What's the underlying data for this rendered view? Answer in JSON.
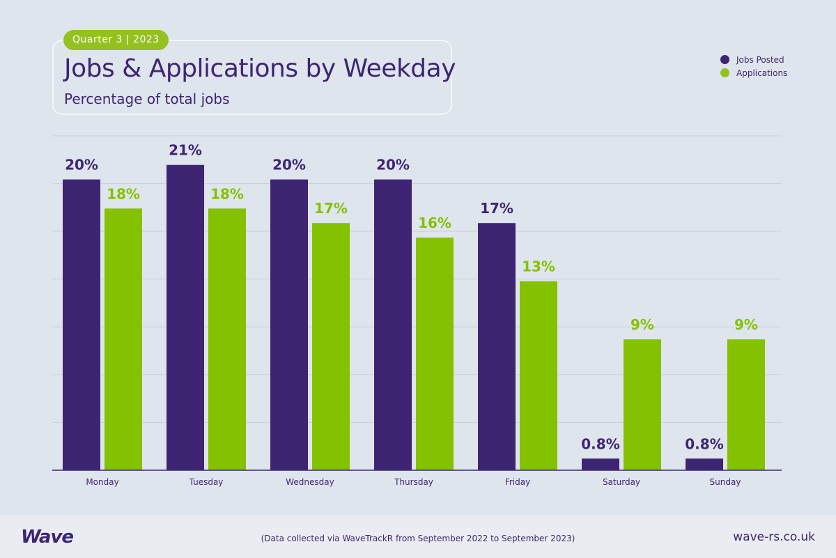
{
  "header": {
    "badge": "Quarter 3 | 2023",
    "title": "Jobs & Applications by Weekday",
    "subtitle": "Percentage of total jobs"
  },
  "legend": [
    {
      "label": "Jobs Posted",
      "color": "#3e2574"
    },
    {
      "label": "Applications",
      "color": "#94c11f"
    }
  ],
  "footer": {
    "logo": "Wave",
    "note": "(Data collected via WaveTrackR from September 2022 to September 2023)",
    "site": "wave-rs.co.uk"
  },
  "chart_data": {
    "type": "bar",
    "title": "Jobs & Applications by Weekday",
    "subtitle": "Percentage of total jobs",
    "categories": [
      "Monday",
      "Tuesday",
      "Wednesday",
      "Thursday",
      "Friday",
      "Saturday",
      "Sunday"
    ],
    "series": [
      {
        "name": "Jobs Posted",
        "color": "#3e2574",
        "label_color": "#3e2574",
        "values": [
          20,
          21,
          20,
          20,
          17,
          0.8,
          0.8
        ],
        "labels": [
          "20%",
          "21%",
          "20%",
          "20%",
          "17%",
          "0.8%",
          "0.8%"
        ]
      },
      {
        "name": "Applications",
        "color": "#84c100",
        "label_color": "#84c100",
        "values": [
          18,
          18,
          17,
          16,
          13,
          9,
          9
        ],
        "labels": [
          "18%",
          "18%",
          "17%",
          "16%",
          "13%",
          "9%",
          "9%"
        ]
      }
    ],
    "ylim": [
      0,
      23
    ],
    "grid": true,
    "gridlines": 7,
    "legend_position": "top-right",
    "xlabel": "",
    "ylabel": ""
  }
}
